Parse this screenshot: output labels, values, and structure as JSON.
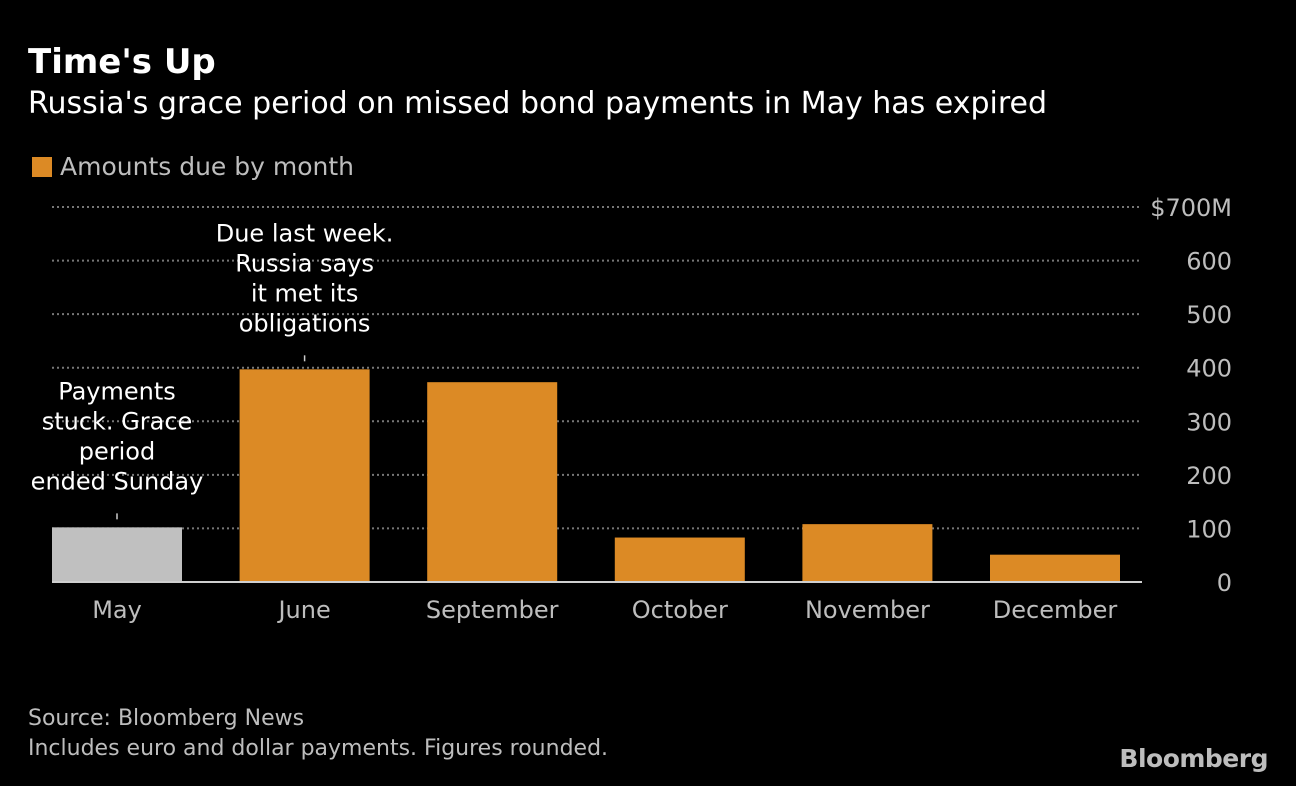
{
  "title": "Time's Up",
  "subtitle": "Russia's grace period on missed bond payments in May has expired",
  "colors": {
    "series": "#dc8a25",
    "highlight": "#c0c0c0",
    "grid": "#777777",
    "text": "#bdbdbd"
  },
  "chart_data": {
    "type": "bar",
    "categories": [
      "May",
      "June",
      "September",
      "October",
      "November",
      "December"
    ],
    "series": [
      {
        "name": "Amounts due by month",
        "values": [
          102,
          397,
          373,
          83,
          108,
          51
        ]
      }
    ],
    "highlighted_category": "May",
    "ylim": [
      0,
      700
    ],
    "yticks": [
      0,
      100,
      200,
      300,
      400,
      500,
      600,
      700
    ],
    "ytick_labels": [
      "0",
      "100",
      "200",
      "300",
      "400",
      "500",
      "600",
      "$700M"
    ],
    "grid": true,
    "legend": "top-left",
    "annotations": [
      {
        "category": "May",
        "lines": [
          "Payments",
          "stuck. Grace",
          "period",
          "ended Sunday"
        ]
      },
      {
        "category": "June",
        "lines": [
          "Due last week.",
          "Russia says",
          "it met its",
          "obligations"
        ]
      }
    ]
  },
  "footer": {
    "source": "Source: Bloomberg News",
    "note": "Includes euro and dollar payments. Figures rounded.",
    "logo": "Bloomberg"
  }
}
